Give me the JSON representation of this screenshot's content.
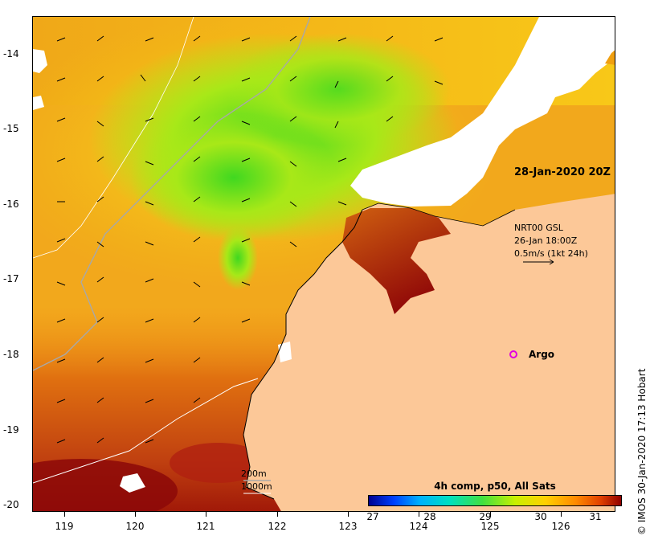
{
  "map": {
    "x_ticks": [
      "119",
      "120",
      "121",
      "122",
      "123",
      "124",
      "125",
      "126"
    ],
    "y_ticks": [
      "-14",
      "-15",
      "-16",
      "-17",
      "-18",
      "-19",
      "-20"
    ],
    "timestamp": "28-Jan-2020 20Z",
    "product_lines": [
      "NRT00 GSL",
      "26-Jan 18:00Z",
      "0.5m/s (1kt 24h)"
    ],
    "argo_label": "Argo",
    "credit": "© IMOS 30-Jan-2020 17:13 Hobart",
    "isobath_labels": [
      "200m",
      "1000m"
    ],
    "colorbar_title": "4h comp, p50, All Sats",
    "colorbar_ticks": [
      "27",
      "28",
      "29",
      "30",
      "31"
    ],
    "colors": {
      "land": "#fcc898",
      "cloud": "#ffffff",
      "argo": "#e000e0"
    }
  }
}
